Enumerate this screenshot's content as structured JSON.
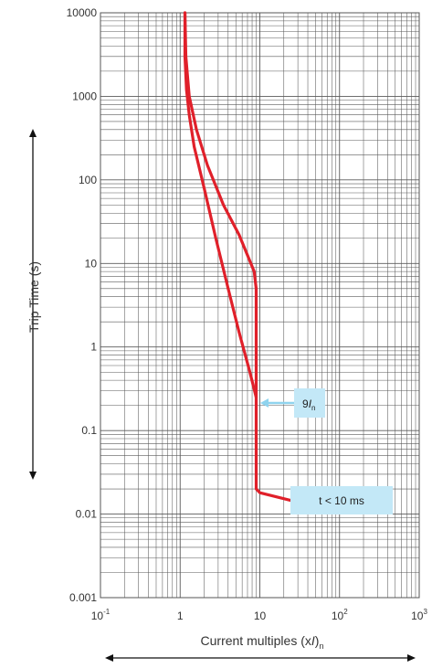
{
  "chart_data": {
    "type": "line",
    "title": "",
    "xlabel": {
      "main": "Current multiples (x",
      "italic": "I",
      "tail": ")",
      "sub": "n"
    },
    "ylabel": "Trip Time (s)",
    "x_scale": "log",
    "y_scale": "log",
    "xlim": [
      0.1,
      1000
    ],
    "ylim": [
      0.001,
      10000
    ],
    "grid": true,
    "x_ticks": [
      {
        "base": "10",
        "exp": "-1"
      },
      {
        "base": "1",
        "exp": ""
      },
      {
        "base": "10",
        "exp": ""
      },
      {
        "base": "10",
        "exp": "2"
      },
      {
        "base": "10",
        "exp": "3"
      }
    ],
    "y_ticks": [
      "10000",
      "1000",
      "100",
      "10",
      "1",
      "0.1",
      "0.01",
      "0.001"
    ],
    "curve_color": "#e0202a",
    "series": [
      {
        "points": [
          [
            1.15,
            10000
          ],
          [
            1.15,
            3000
          ],
          [
            1.2,
            1200
          ],
          [
            1.3,
            600
          ],
          [
            1.5,
            250
          ],
          [
            2.0,
            80
          ],
          [
            2.8,
            20
          ],
          [
            4.0,
            5
          ],
          [
            5.5,
            1.5
          ],
          [
            7.5,
            0.5
          ],
          [
            9.0,
            0.25
          ],
          [
            9.0,
            0.02
          ],
          [
            10.0,
            0.018
          ],
          [
            25.0,
            0.0145
          ]
        ]
      },
      {
        "points": [
          [
            1.15,
            10000
          ],
          [
            1.18,
            3000
          ],
          [
            1.3,
            1000
          ],
          [
            1.6,
            400
          ],
          [
            2.2,
            150
          ],
          [
            3.5,
            50
          ],
          [
            5.5,
            22
          ],
          [
            8.5,
            8
          ],
          [
            9.0,
            5
          ],
          [
            9.0,
            0.25
          ]
        ]
      }
    ],
    "annotations": [
      {
        "name": "instantaneous-trip",
        "main": "9",
        "italic": "I",
        "sub": "n",
        "x": 9.0,
        "y": 0.19
      },
      {
        "name": "trip-time-limit",
        "text": "t < 10 ms",
        "x": 25,
        "y": 0.0145
      }
    ],
    "colors": {
      "curve": "#e0202a",
      "callout_fill": "#c3e8f7",
      "callout_arrow": "#8fd3ee",
      "grid": "#5a5a5a"
    }
  }
}
